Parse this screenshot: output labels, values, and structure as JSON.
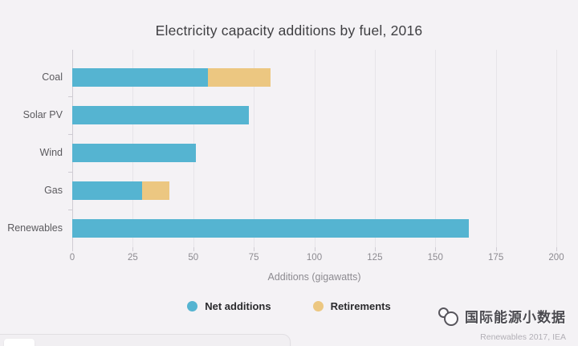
{
  "title": "Electricity capacity additions by fuel, 2016",
  "colors": {
    "background": "#f4f2f5",
    "net_additions": "#55b4d1",
    "retirements": "#ecc781"
  },
  "chart_data": {
    "type": "bar",
    "orientation": "horizontal",
    "stacked": true,
    "title": "Electricity capacity additions by fuel, 2016",
    "categories": [
      "Coal",
      "Solar PV",
      "Wind",
      "Gas",
      "Renewables"
    ],
    "series": [
      {
        "name": "Net additions",
        "color": "#55b4d1",
        "values": [
          56,
          73,
          51,
          29,
          164
        ]
      },
      {
        "name": "Retirements",
        "color": "#ecc781",
        "values": [
          26,
          0,
          0,
          11,
          0
        ]
      }
    ],
    "xlabel": "Additions (gigawatts)",
    "xlim": [
      0,
      200
    ],
    "xticks": [
      0,
      25,
      50,
      75,
      100,
      125,
      150,
      175,
      200
    ],
    "grid": true,
    "legend_position": "bottom"
  },
  "legend": {
    "items": [
      {
        "label": "Net additions",
        "color": "#55b4d1"
      },
      {
        "label": "Retirements",
        "color": "#ecc781"
      }
    ]
  },
  "footer": {
    "watermark": "国际能源小数据",
    "source": "Renewables 2017, IEA"
  }
}
